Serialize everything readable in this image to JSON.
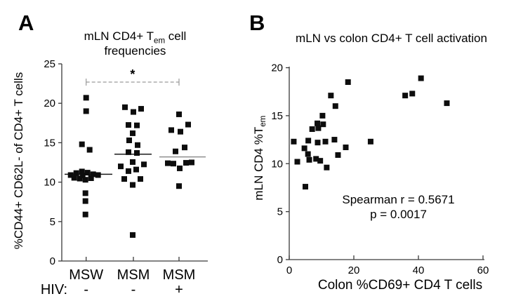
{
  "figure": {
    "background": "#ffffff",
    "text_color": "#000000"
  },
  "panel_a": {
    "label": "A",
    "title_parts": {
      "pre": "mLN CD4+ T",
      "sub": "em",
      "post": " cell",
      "line2": "frequencies"
    },
    "ylabel": "%CD44+ CD62L- of CD4+ T cells",
    "hiv_label": "HIV:"
  },
  "panel_b": {
    "label": "B",
    "title": "mLN vs colon CD4+ T cell activation",
    "ylabel_parts": {
      "pre": "mLN CD4 %T",
      "sub": "em"
    },
    "xlabel": "Colon %CD69+ CD4 T cells"
  },
  "chart_data": [
    {
      "panel": "A",
      "type": "scatter",
      "subtype": "column-scatter",
      "title": "mLN CD4+ Tem cell frequencies",
      "ylabel": "%CD44+ CD62L- of CD4+ T cells",
      "ylim": [
        0,
        25
      ],
      "yticks": [
        0,
        5,
        10,
        15,
        20,
        25
      ],
      "marker": "filled-square",
      "marker_color": "#0d0d0d",
      "marker_size": 8,
      "axis_color": "#3a3a3a",
      "groups": [
        {
          "label": "MSW",
          "hiv": "-",
          "median": 11.0,
          "median_color": "#1a1a1a",
          "points": [
            [
              0,
              20.7
            ],
            [
              0,
              19.0
            ],
            [
              -6,
              14.8
            ],
            [
              5,
              14.1
            ],
            [
              -22,
              10.9
            ],
            [
              -14,
              11.15
            ],
            [
              -6,
              11.35
            ],
            [
              2,
              11.2
            ],
            [
              10,
              11.0
            ],
            [
              17,
              10.9
            ],
            [
              -17,
              10.55
            ],
            [
              -9,
              10.45
            ],
            [
              -1,
              10.3
            ],
            [
              7,
              10.5
            ],
            [
              -5,
              10.85
            ],
            [
              -1,
              8.6
            ],
            [
              -1,
              7.6
            ],
            [
              -1,
              5.9
            ]
          ]
        },
        {
          "label": "MSM",
          "hiv": "-",
          "median": 13.55,
          "median_color": "#1a1a1a",
          "points": [
            [
              -12,
              19.5
            ],
            [
              11,
              19.3
            ],
            [
              0,
              18.9
            ],
            [
              -7,
              17.25
            ],
            [
              5,
              17.2
            ],
            [
              -1,
              16.2
            ],
            [
              -6,
              15.3
            ],
            [
              6,
              14.7
            ],
            [
              -7,
              13.8
            ],
            [
              5,
              13.7
            ],
            [
              -1,
              12.55
            ],
            [
              15,
              12.25
            ],
            [
              -18,
              12.0
            ],
            [
              4,
              11.6
            ],
            [
              -7,
              11.4
            ],
            [
              -13,
              10.4
            ],
            [
              10,
              10.4
            ],
            [
              -1,
              9.65
            ],
            [
              -1,
              3.3
            ]
          ]
        },
        {
          "label": "MSM",
          "hiv": "+",
          "median": 13.2,
          "median_color": "#8f8f8f",
          "points": [
            [
              0,
              18.6
            ],
            [
              13,
              17.3
            ],
            [
              -11,
              16.6
            ],
            [
              2,
              16.4
            ],
            [
              8,
              14.4
            ],
            [
              -5,
              13.9
            ],
            [
              -16,
              12.4
            ],
            [
              -8,
              12.35
            ],
            [
              10,
              12.45
            ],
            [
              18,
              12.5
            ],
            [
              1,
              11.75
            ],
            [
              0,
              9.5
            ]
          ]
        }
      ],
      "significance": {
        "star": "*",
        "from_group": 0,
        "to_group": 2,
        "line_style": "dashed",
        "line_color": "#9a9a9a"
      }
    },
    {
      "panel": "B",
      "type": "scatter",
      "title": "mLN vs colon CD4+ T cell activation",
      "xlabel": "Colon %CD69+ CD4 T cells",
      "ylabel": "mLN CD4 %Tem",
      "xlim": [
        0,
        60
      ],
      "xticks": [
        0,
        20,
        40,
        60
      ],
      "ylim": [
        0,
        20
      ],
      "yticks": [
        0,
        5,
        10,
        15,
        20
      ],
      "marker": "filled-square",
      "marker_color": "#0d0d0d",
      "marker_size": 8,
      "axis_color": "#3a3a3a",
      "points": [
        [
          1.4,
          12.3
        ],
        [
          2.5,
          10.2
        ],
        [
          4.7,
          11.6
        ],
        [
          5.0,
          7.6
        ],
        [
          5.8,
          11.0
        ],
        [
          5.9,
          12.4
        ],
        [
          6.2,
          10.4
        ],
        [
          7.1,
          13.6
        ],
        [
          8.3,
          10.5
        ],
        [
          8.7,
          14.2
        ],
        [
          8.8,
          12.2
        ],
        [
          9.0,
          13.7
        ],
        [
          9.6,
          10.3
        ],
        [
          10.3,
          15.0
        ],
        [
          10.5,
          14.1
        ],
        [
          11.2,
          12.3
        ],
        [
          11.6,
          9.6
        ],
        [
          12.9,
          17.1
        ],
        [
          14.0,
          12.5
        ],
        [
          14.3,
          16.0
        ],
        [
          15.1,
          10.9
        ],
        [
          17.5,
          11.7
        ],
        [
          18.2,
          18.5
        ],
        [
          25.2,
          12.3
        ],
        [
          35.9,
          17.1
        ],
        [
          38.1,
          17.3
        ],
        [
          40.8,
          18.9
        ],
        [
          48.8,
          16.3
        ]
      ],
      "annotation": {
        "line1": "Spearman r = 0.5671",
        "line2": "p = 0.0017"
      }
    }
  ]
}
